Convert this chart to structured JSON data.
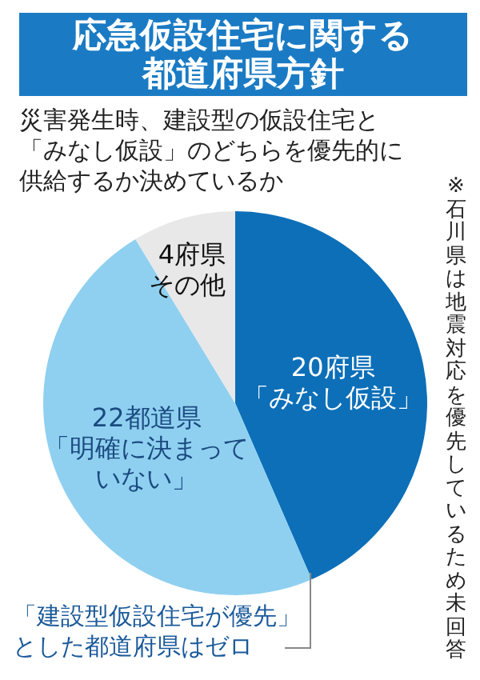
{
  "chart_data": {
    "type": "pie",
    "title": "応急仮設住宅に関する都道府県方針",
    "subtitle": "災害発生時、建設型の仮設住宅と「みなし仮設」のどちらを優先的に供給するか決めているか",
    "categories": [
      "「みなし仮設」",
      "「明確に決まっていない」",
      "その他"
    ],
    "values": [
      20,
      22,
      4
    ],
    "value_labels": [
      "20府県",
      "22都道県",
      "4府県"
    ],
    "colors": [
      "#0c6fb8",
      "#8fd0f0",
      "#e8e8e8"
    ],
    "annotations": [
      "「建設型仮設住宅が優先」とした都道府県はゼロ",
      "※石川県は地震対応を優先しているため未回答"
    ],
    "legend": false
  }
}
